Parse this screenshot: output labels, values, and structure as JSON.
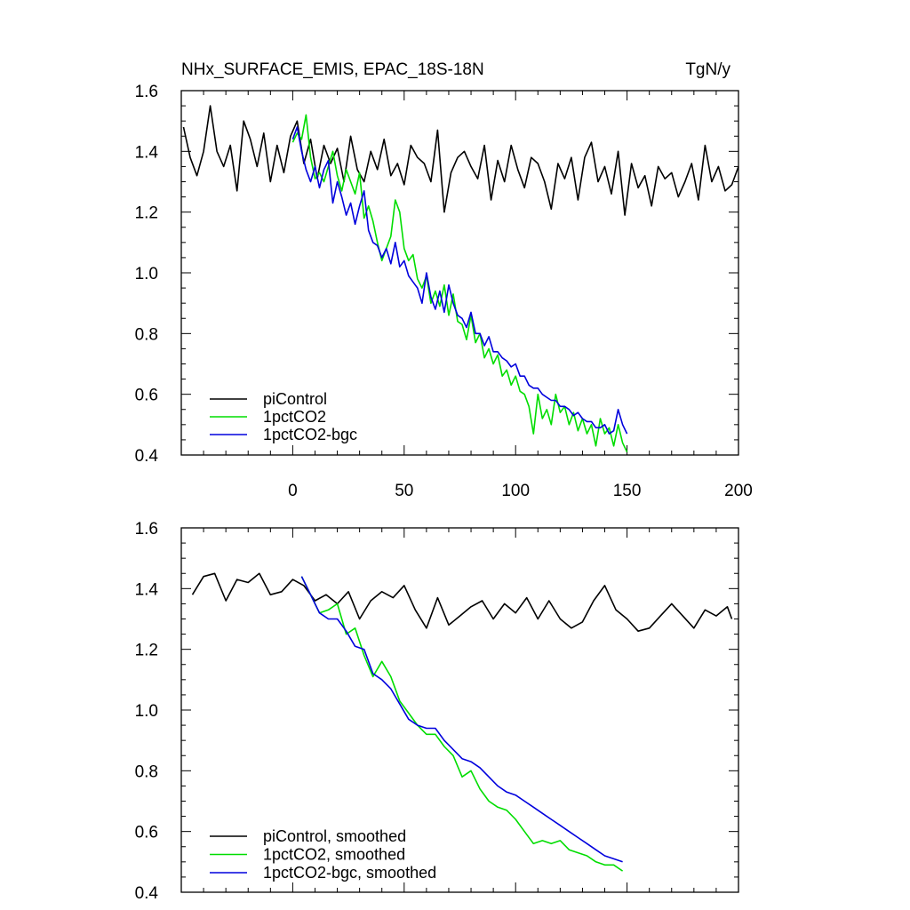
{
  "chart_data": [
    {
      "type": "line",
      "title": "NHx_SURFACE_EMIS, EPAC_18S-18N",
      "units": "TgN/y",
      "xlabel": "",
      "ylabel": "",
      "xlim": [
        -50,
        200
      ],
      "ylim": [
        0.4,
        1.6
      ],
      "xticks": [
        0,
        50,
        100,
        150,
        200
      ],
      "xtick_labels": [
        "0",
        "50",
        "100",
        "150",
        "200"
      ],
      "yticks": [
        0.4,
        0.6,
        0.8,
        1.0,
        1.2,
        1.4,
        1.6
      ],
      "ytick_labels": [
        "0.4",
        "0.6",
        "0.8",
        "1.0",
        "1.2",
        "1.4",
        "1.6"
      ],
      "legend_position": "bottom-left",
      "series": [
        {
          "name": "piControl",
          "color": "#000000",
          "x": [
            -49,
            -46,
            -43,
            -40,
            -37,
            -34,
            -31,
            -28,
            -25,
            -22,
            -19,
            -16,
            -13,
            -10,
            -7,
            -4,
            -1,
            2,
            5,
            8,
            11,
            14,
            17,
            20,
            23,
            26,
            29,
            32,
            35,
            38,
            41,
            44,
            47,
            50,
            53,
            56,
            59,
            62,
            65,
            68,
            71,
            74,
            77,
            80,
            83,
            86,
            89,
            92,
            95,
            98,
            101,
            104,
            107,
            110,
            113,
            116,
            119,
            122,
            125,
            128,
            131,
            134,
            137,
            140,
            143,
            146,
            149,
            152,
            155,
            158,
            161,
            164,
            167,
            170,
            173,
            176,
            179,
            182,
            185,
            188,
            191,
            194,
            197,
            200
          ],
          "values": [
            1.48,
            1.38,
            1.32,
            1.4,
            1.55,
            1.4,
            1.35,
            1.42,
            1.27,
            1.5,
            1.44,
            1.35,
            1.46,
            1.3,
            1.42,
            1.33,
            1.45,
            1.5,
            1.36,
            1.44,
            1.31,
            1.42,
            1.36,
            1.41,
            1.3,
            1.45,
            1.34,
            1.3,
            1.4,
            1.34,
            1.44,
            1.32,
            1.36,
            1.29,
            1.42,
            1.38,
            1.36,
            1.3,
            1.47,
            1.2,
            1.33,
            1.38,
            1.4,
            1.35,
            1.31,
            1.42,
            1.24,
            1.37,
            1.3,
            1.42,
            1.34,
            1.28,
            1.38,
            1.36,
            1.3,
            1.21,
            1.36,
            1.31,
            1.38,
            1.24,
            1.38,
            1.43,
            1.3,
            1.35,
            1.26,
            1.4,
            1.19,
            1.36,
            1.28,
            1.32,
            1.22,
            1.35,
            1.31,
            1.33,
            1.25,
            1.3,
            1.36,
            1.24,
            1.42,
            1.3,
            1.35,
            1.27,
            1.29,
            1.35
          ]
        },
        {
          "name": "1pctCO2",
          "color": "#00dd00",
          "x": [
            0,
            2,
            4,
            6,
            8,
            10,
            12,
            14,
            16,
            18,
            20,
            22,
            24,
            26,
            28,
            30,
            32,
            34,
            36,
            38,
            40,
            42,
            44,
            46,
            48,
            50,
            52,
            54,
            56,
            58,
            60,
            62,
            64,
            66,
            68,
            70,
            72,
            74,
            76,
            78,
            80,
            82,
            84,
            86,
            88,
            90,
            92,
            94,
            96,
            98,
            100,
            102,
            104,
            106,
            108,
            110,
            112,
            114,
            116,
            118,
            120,
            122,
            124,
            126,
            128,
            130,
            132,
            134,
            136,
            138,
            140,
            142,
            144,
            146,
            148,
            150
          ],
          "values": [
            1.43,
            1.46,
            1.44,
            1.52,
            1.38,
            1.31,
            1.33,
            1.3,
            1.35,
            1.4,
            1.32,
            1.27,
            1.34,
            1.3,
            1.26,
            1.33,
            1.18,
            1.22,
            1.17,
            1.1,
            1.04,
            1.08,
            1.12,
            1.24,
            1.2,
            1.08,
            1.04,
            1.06,
            0.98,
            0.95,
            0.99,
            0.9,
            0.94,
            0.89,
            0.96,
            0.86,
            0.93,
            0.84,
            0.83,
            0.78,
            0.86,
            0.77,
            0.8,
            0.72,
            0.75,
            0.7,
            0.73,
            0.66,
            0.68,
            0.63,
            0.66,
            0.61,
            0.6,
            0.56,
            0.47,
            0.6,
            0.52,
            0.55,
            0.5,
            0.6,
            0.54,
            0.56,
            0.5,
            0.54,
            0.48,
            0.52,
            0.47,
            0.5,
            0.43,
            0.52,
            0.47,
            0.49,
            0.43,
            0.5,
            0.44,
            0.41
          ]
        },
        {
          "name": "1pctCO2-bgc",
          "color": "#0000dd",
          "x": [
            0,
            2,
            4,
            6,
            8,
            10,
            12,
            14,
            16,
            18,
            20,
            22,
            24,
            26,
            28,
            30,
            32,
            34,
            36,
            38,
            40,
            42,
            44,
            46,
            48,
            50,
            52,
            54,
            56,
            58,
            60,
            62,
            64,
            66,
            68,
            70,
            72,
            74,
            76,
            78,
            80,
            82,
            84,
            86,
            88,
            90,
            92,
            94,
            96,
            98,
            100,
            102,
            104,
            106,
            108,
            110,
            112,
            114,
            116,
            118,
            120,
            122,
            124,
            126,
            128,
            130,
            132,
            134,
            136,
            138,
            140,
            142,
            144,
            146,
            148,
            150
          ],
          "values": [
            1.44,
            1.48,
            1.4,
            1.34,
            1.3,
            1.35,
            1.28,
            1.34,
            1.37,
            1.23,
            1.3,
            1.25,
            1.19,
            1.23,
            1.16,
            1.22,
            1.27,
            1.14,
            1.1,
            1.09,
            1.05,
            1.08,
            1.03,
            1.1,
            1.02,
            1.04,
            0.99,
            0.97,
            0.95,
            0.9,
            1.0,
            0.92,
            0.88,
            0.94,
            0.87,
            0.96,
            0.9,
            0.86,
            0.85,
            0.82,
            0.87,
            0.8,
            0.8,
            0.76,
            0.79,
            0.74,
            0.74,
            0.72,
            0.71,
            0.69,
            0.7,
            0.66,
            0.66,
            0.63,
            0.62,
            0.62,
            0.6,
            0.59,
            0.58,
            0.58,
            0.56,
            0.56,
            0.55,
            0.53,
            0.54,
            0.52,
            0.51,
            0.51,
            0.49,
            0.49,
            0.5,
            0.47,
            0.48,
            0.55,
            0.5,
            0.47
          ]
        }
      ]
    },
    {
      "type": "line",
      "title": "",
      "xlabel": "",
      "ylabel": "",
      "xlim": [
        -50,
        200
      ],
      "ylim": [
        0.4,
        1.6
      ],
      "xticks": [
        0,
        50,
        100,
        150,
        200
      ],
      "yticks": [
        0.4,
        0.6,
        0.8,
        1.0,
        1.2,
        1.4,
        1.6
      ],
      "ytick_labels": [
        "0.4",
        "0.6",
        "0.8",
        "1.0",
        "1.2",
        "1.4",
        "1.6"
      ],
      "legend_position": "bottom-left",
      "series": [
        {
          "name": "piControl, smoothed",
          "color": "#000000",
          "x": [
            -45,
            -40,
            -35,
            -30,
            -25,
            -20,
            -15,
            -10,
            -5,
            0,
            5,
            10,
            15,
            20,
            25,
            30,
            35,
            40,
            45,
            50,
            55,
            60,
            65,
            70,
            75,
            80,
            85,
            90,
            95,
            100,
            105,
            110,
            115,
            120,
            125,
            130,
            135,
            140,
            145,
            150,
            155,
            160,
            165,
            170,
            175,
            180,
            185,
            190,
            195,
            197
          ],
          "values": [
            1.38,
            1.44,
            1.45,
            1.36,
            1.43,
            1.42,
            1.45,
            1.38,
            1.39,
            1.43,
            1.41,
            1.36,
            1.38,
            1.35,
            1.39,
            1.3,
            1.36,
            1.39,
            1.37,
            1.41,
            1.33,
            1.27,
            1.37,
            1.28,
            1.31,
            1.34,
            1.36,
            1.3,
            1.35,
            1.32,
            1.37,
            1.3,
            1.36,
            1.3,
            1.27,
            1.29,
            1.36,
            1.41,
            1.33,
            1.3,
            1.26,
            1.27,
            1.31,
            1.35,
            1.31,
            1.27,
            1.33,
            1.31,
            1.34,
            1.3
          ]
        },
        {
          "name": "1pctCO2, smoothed",
          "color": "#00dd00",
          "x": [
            4,
            8,
            12,
            16,
            20,
            24,
            28,
            32,
            36,
            40,
            44,
            48,
            52,
            56,
            60,
            64,
            68,
            72,
            76,
            80,
            84,
            88,
            92,
            96,
            100,
            104,
            108,
            112,
            116,
            120,
            124,
            128,
            132,
            136,
            140,
            144,
            148
          ],
          "values": [
            1.44,
            1.38,
            1.32,
            1.33,
            1.35,
            1.25,
            1.27,
            1.18,
            1.11,
            1.16,
            1.11,
            1.03,
            0.99,
            0.95,
            0.92,
            0.92,
            0.88,
            0.85,
            0.78,
            0.8,
            0.74,
            0.7,
            0.68,
            0.67,
            0.64,
            0.6,
            0.56,
            0.57,
            0.56,
            0.57,
            0.54,
            0.53,
            0.52,
            0.5,
            0.49,
            0.49,
            0.47
          ]
        },
        {
          "name": "1pctCO2-bgc, smoothed",
          "color": "#0000dd",
          "x": [
            4,
            8,
            12,
            16,
            20,
            24,
            28,
            32,
            36,
            40,
            44,
            48,
            52,
            56,
            60,
            64,
            68,
            72,
            76,
            80,
            84,
            88,
            92,
            96,
            100,
            104,
            108,
            112,
            116,
            120,
            124,
            128,
            132,
            136,
            140,
            144,
            148
          ],
          "values": [
            1.44,
            1.38,
            1.32,
            1.3,
            1.3,
            1.26,
            1.21,
            1.2,
            1.12,
            1.1,
            1.07,
            1.02,
            0.97,
            0.95,
            0.94,
            0.94,
            0.9,
            0.87,
            0.84,
            0.83,
            0.81,
            0.78,
            0.75,
            0.73,
            0.72,
            0.7,
            0.68,
            0.66,
            0.64,
            0.62,
            0.6,
            0.58,
            0.56,
            0.54,
            0.52,
            0.51,
            0.5
          ]
        }
      ]
    }
  ]
}
